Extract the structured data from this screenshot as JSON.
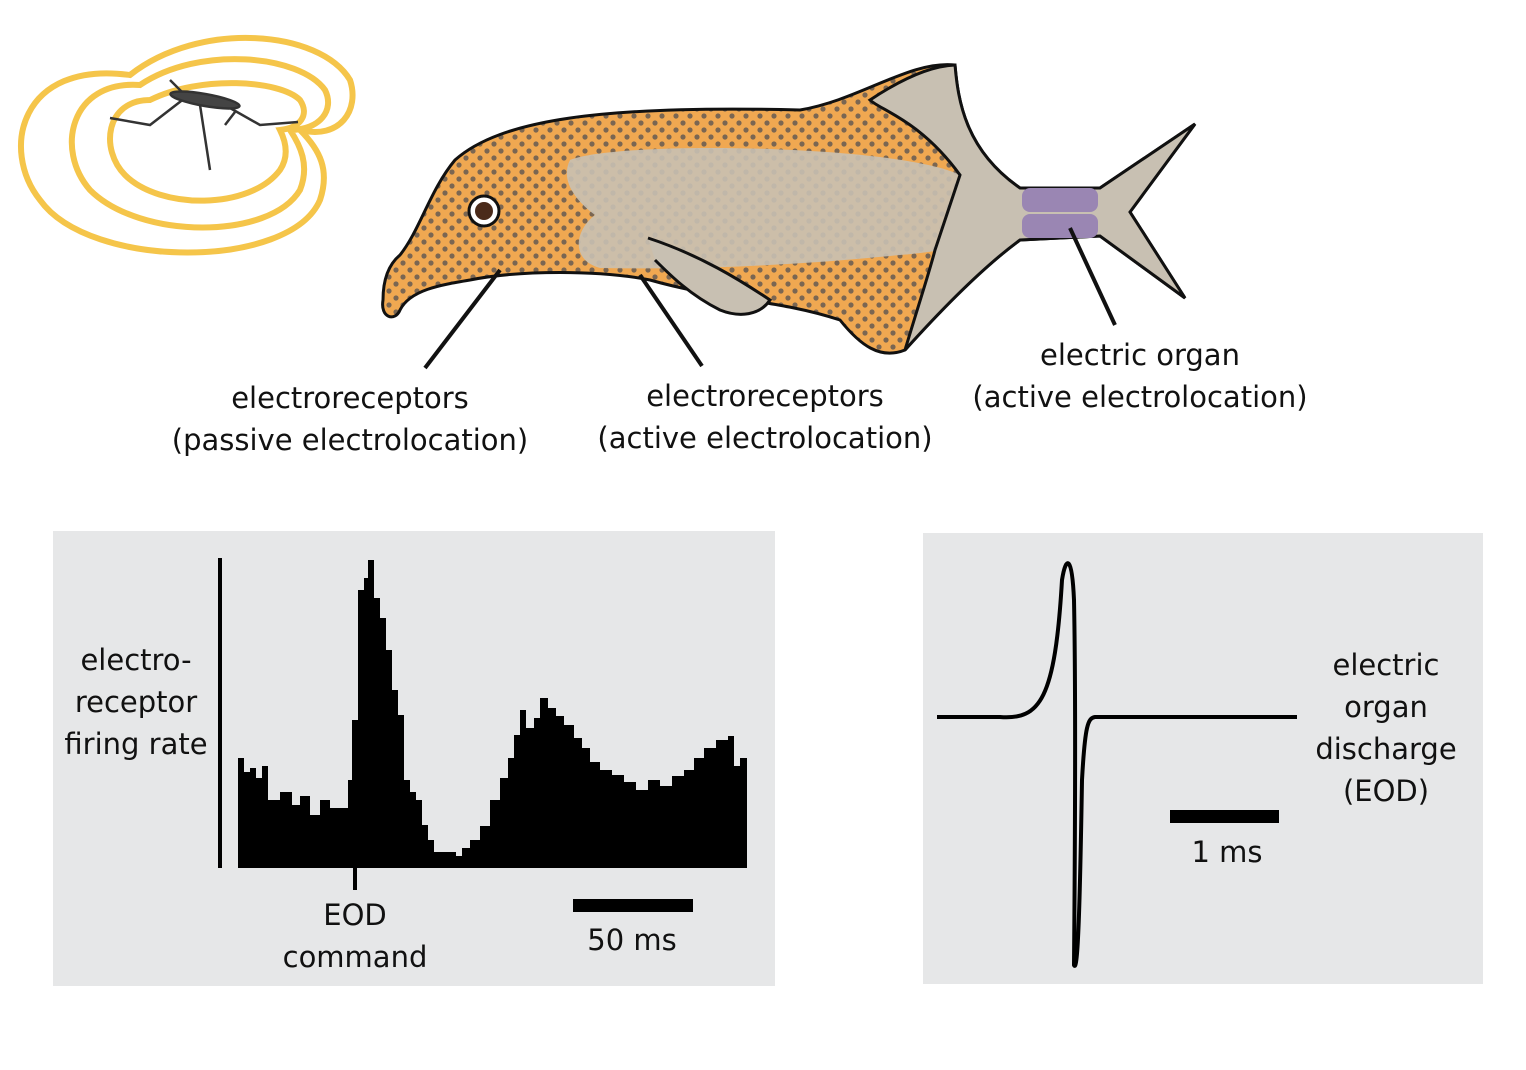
{
  "labels": {
    "passive_receptors": [
      "electroreceptors",
      "(passive electrolocation)"
    ],
    "active_receptors": [
      "electroreceptors",
      "(active electrolocation)"
    ],
    "electric_organ": [
      "electric organ",
      "(active electrolocation)"
    ]
  },
  "left_panel": {
    "y_label": [
      "electro-",
      "receptor",
      "firing rate"
    ],
    "x_label": [
      "EOD",
      "command"
    ],
    "scale_bar": "50 ms"
  },
  "right_panel": {
    "label": [
      "electric",
      "organ",
      "discharge",
      "(EOD)"
    ],
    "scale_bar": "1 ms"
  }
}
